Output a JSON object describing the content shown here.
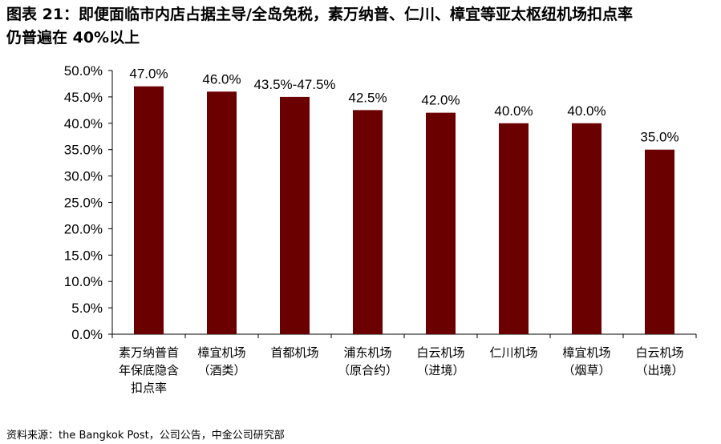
{
  "title_line1": "图表 21：即便面临市内店占据主导/全岛免税，素万纳普、仁川、樟宜等亚太枢纽机场扣点率",
  "title_line2": "仍普遍在 40%以上",
  "source": "资料来源：the Bangkok Post，公司公告，中金公司研究部",
  "colors": {
    "bar": "#6b0000",
    "axis": "#000000"
  },
  "chart_data": {
    "type": "bar",
    "title": "",
    "xlabel": "",
    "ylabel": "",
    "ylim": [
      0,
      50
    ],
    "y_ticks": [
      "0.0%",
      "5.0%",
      "10.0%",
      "15.0%",
      "20.0%",
      "25.0%",
      "30.0%",
      "35.0%",
      "40.0%",
      "45.0%",
      "50.0%"
    ],
    "categories": [
      [
        "素万纳普首",
        "年保底隐含",
        "扣点率"
      ],
      [
        "樟宜机场",
        "（酒类）"
      ],
      [
        "首都机场"
      ],
      [
        "浦东机场",
        "（原合约）"
      ],
      [
        "白云机场",
        "（进境）"
      ],
      [
        "仁川机场"
      ],
      [
        "樟宜机场",
        "（烟草）"
      ],
      [
        "白云机场",
        "（出境）"
      ]
    ],
    "values": [
      47.0,
      46.0,
      45.0,
      42.5,
      42.0,
      40.0,
      40.0,
      35.0
    ],
    "data_labels": [
      "47.0%",
      "46.0%",
      "43.5%-47.5%",
      "42.5%",
      "42.0%",
      "40.0%",
      "40.0%",
      "35.0%"
    ],
    "grid": false,
    "legend": "none"
  }
}
